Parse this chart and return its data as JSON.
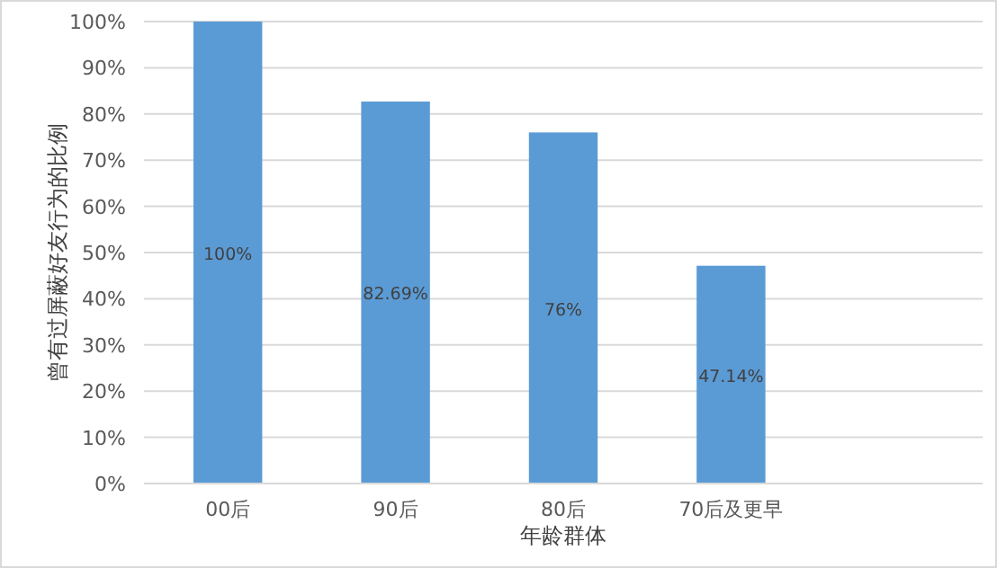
{
  "chart_data": {
    "type": "bar",
    "xlabel": "年龄群体",
    "ylabel": "曾有过屏蔽好友行为的比例",
    "categories": [
      "00后",
      "90后",
      "80后",
      "70后及更早",
      null
    ],
    "values": [
      100,
      82.69,
      76,
      47.14,
      null
    ],
    "value_labels": [
      "100%",
      "82.69%",
      "76%",
      "47.14%",
      null
    ],
    "color": "#5b9bd5",
    "ylim": [
      0,
      100
    ],
    "yticks": [
      {
        "value": 0,
        "label": "0%"
      },
      {
        "value": 10,
        "label": "10%"
      },
      {
        "value": 20,
        "label": "20%"
      },
      {
        "value": 30,
        "label": "30%"
      },
      {
        "value": 40,
        "label": "40%"
      },
      {
        "value": 50,
        "label": "50%"
      },
      {
        "value": 60,
        "label": "60%"
      },
      {
        "value": 70,
        "label": "70%"
      },
      {
        "value": 80,
        "label": "80%"
      },
      {
        "value": 90,
        "label": "90%"
      },
      {
        "value": 100,
        "label": "100%"
      }
    ],
    "grid": "y"
  }
}
